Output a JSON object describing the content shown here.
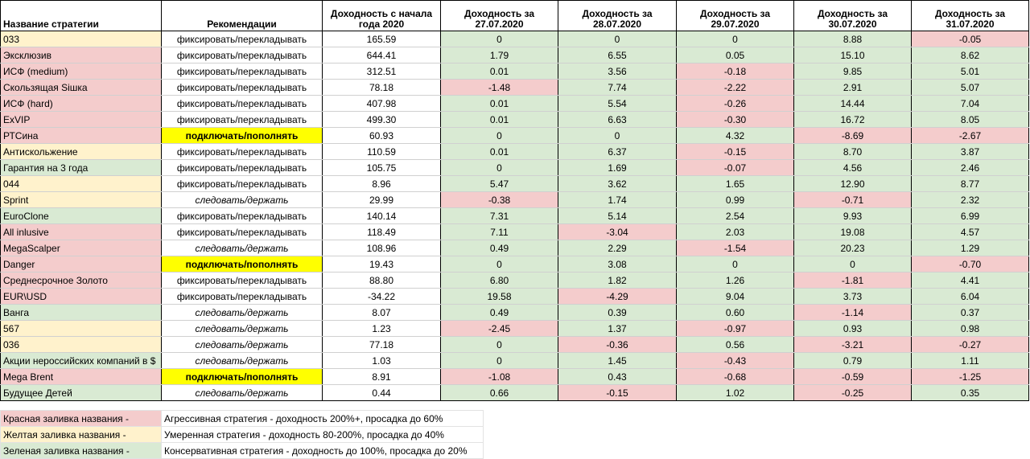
{
  "colors": {
    "red": "#f4cccc",
    "yellow": "#fff2cc",
    "green": "#d9ead3",
    "highlight": "#ffff00"
  },
  "headers": [
    "Название стратегии",
    "Рекомендации",
    "Доходность с начала года 2020",
    "Доходность за 27.07.2020",
    "Доходность за 28.07.2020",
    "Доходность за 29.07.2020",
    "Доходность за 30.07.2020",
    "Доходность за 31.07.2020"
  ],
  "rows": [
    {
      "name": "033",
      "name_color": "yellow",
      "rec": "фиксировать/перекладывать",
      "rec_style": "plain",
      "values": [
        "165.59",
        "0",
        "0",
        "0",
        "8.88",
        "-0.05"
      ]
    },
    {
      "name": "Эксклюзив",
      "name_color": "red",
      "rec": "фиксировать/перекладывать",
      "rec_style": "plain",
      "values": [
        "644.41",
        "1.79",
        "6.55",
        "0.05",
        "15.10",
        "8.62"
      ]
    },
    {
      "name": "ИСФ (medium)",
      "name_color": "red",
      "rec": "фиксировать/перекладывать",
      "rec_style": "plain",
      "values": [
        "312.51",
        "0.01",
        "3.56",
        "-0.18",
        "9.85",
        "5.01"
      ]
    },
    {
      "name": "Скользящая Siшка",
      "name_color": "red",
      "rec": "фиксировать/перекладывать",
      "rec_style": "plain",
      "values": [
        "78.18",
        "-1.48",
        "7.74",
        "-2.22",
        "2.91",
        "5.07"
      ]
    },
    {
      "name": "ИСФ (hard)",
      "name_color": "red",
      "rec": "фиксировать/перекладывать",
      "rec_style": "plain",
      "values": [
        "407.98",
        "0.01",
        "5.54",
        "-0.26",
        "14.44",
        "7.04"
      ]
    },
    {
      "name": "ExVIP",
      "name_color": "red",
      "rec": "фиксировать/перекладывать",
      "rec_style": "plain",
      "values": [
        "499.30",
        "0.01",
        "6.63",
        "-0.30",
        "16.72",
        "8.05"
      ]
    },
    {
      "name": "РТСина",
      "name_color": "red",
      "rec": "подключать/пополнять",
      "rec_style": "bold",
      "values": [
        "60.93",
        "0",
        "0",
        "4.32",
        "-8.69",
        "-2.67"
      ]
    },
    {
      "name": "Антискольжение",
      "name_color": "yellow",
      "rec": "фиксировать/перекладывать",
      "rec_style": "plain",
      "values": [
        "110.59",
        "0.01",
        "6.37",
        "-0.15",
        "8.70",
        "3.87"
      ]
    },
    {
      "name": "Гарантия на 3 года",
      "name_color": "green",
      "rec": "фиксировать/перекладывать",
      "rec_style": "plain",
      "values": [
        "105.75",
        "0",
        "1.69",
        "-0.07",
        "4.56",
        "2.46"
      ]
    },
    {
      "name": "044",
      "name_color": "yellow",
      "rec": "фиксировать/перекладывать",
      "rec_style": "plain",
      "values": [
        "8.96",
        "5.47",
        "3.62",
        "1.65",
        "12.90",
        "8.77"
      ]
    },
    {
      "name": "Sprint",
      "name_color": "yellow",
      "rec": "следовать/держать",
      "rec_style": "italic",
      "values": [
        "29.99",
        "-0.38",
        "1.74",
        "0.99",
        "-0.71",
        "2.32"
      ]
    },
    {
      "name": "EuroClone",
      "name_color": "green",
      "rec": "фиксировать/перекладывать",
      "rec_style": "plain",
      "values": [
        "140.14",
        "7.31",
        "5.14",
        "2.54",
        "9.93",
        "6.99"
      ]
    },
    {
      "name": "All inlusive",
      "name_color": "red",
      "rec": "фиксировать/перекладывать",
      "rec_style": "plain",
      "values": [
        "118.49",
        "7.11",
        "-3.04",
        "2.03",
        "19.08",
        "4.57"
      ]
    },
    {
      "name": "MegaScalper",
      "name_color": "red",
      "rec": "следовать/держать",
      "rec_style": "italic",
      "values": [
        "108.96",
        "0.49",
        "2.29",
        "-1.54",
        "20.23",
        "1.29"
      ]
    },
    {
      "name": "Danger",
      "name_color": "red",
      "rec": "подключать/пополнять",
      "rec_style": "bold",
      "values": [
        "19.43",
        "0",
        "3.08",
        "0",
        "0",
        "-0.70"
      ]
    },
    {
      "name": "Среднесрочное Золото",
      "name_color": "red",
      "rec": "фиксировать/перекладывать",
      "rec_style": "plain",
      "values": [
        "88.80",
        "6.80",
        "1.82",
        "1.26",
        "-1.81",
        "4.41"
      ]
    },
    {
      "name": "EUR\\USD",
      "name_color": "red",
      "rec": "фиксировать/перекладывать",
      "rec_style": "plain",
      "values": [
        "-34.22",
        "19.58",
        "-4.29",
        "9.04",
        "3.73",
        "6.04"
      ]
    },
    {
      "name": "Ванга",
      "name_color": "green",
      "rec": "следовать/держать",
      "rec_style": "italic",
      "values": [
        "8.07",
        "0.49",
        "0.39",
        "0.60",
        "-1.14",
        "0.37"
      ]
    },
    {
      "name": "567",
      "name_color": "yellow",
      "rec": "следовать/держать",
      "rec_style": "italic",
      "values": [
        "1.23",
        "-2.45",
        "1.37",
        "-0.97",
        "0.93",
        "0.98"
      ]
    },
    {
      "name": "036",
      "name_color": "yellow",
      "rec": "следовать/держать",
      "rec_style": "italic",
      "values": [
        "77.18",
        "0",
        "-0.36",
        "0.56",
        "-3.21",
        "-0.27"
      ]
    },
    {
      "name": "Акции нероссийских компаний в $",
      "name_color": "green",
      "rec": "следовать/держать",
      "rec_style": "italic",
      "values": [
        "1.03",
        "0",
        "1.45",
        "-0.43",
        "0.79",
        "1.11"
      ]
    },
    {
      "name": "Mega Brent",
      "name_color": "red",
      "rec": "подключать/пополнять",
      "rec_style": "bold",
      "values": [
        "8.91",
        "-1.08",
        "0.43",
        "-0.68",
        "-0.59",
        "-1.25"
      ]
    },
    {
      "name": "Будущее Детей",
      "name_color": "green",
      "rec": "следовать/держать",
      "rec_style": "italic",
      "values": [
        "0.44",
        "0.66",
        "-0.15",
        "1.02",
        "-0.25",
        "0.35"
      ]
    }
  ],
  "legend": [
    {
      "label": "Красная заливка названия -",
      "color": "red",
      "text": "Агрессивная стратегия - доходность 200%+, просадка до 60%"
    },
    {
      "label": "Желтая заливка названия -",
      "color": "yellow",
      "text": "Умеренная стратегия - доходность 80-200%, просадка до 40%"
    },
    {
      "label": "Зеленая заливка названия -",
      "color": "green",
      "text": "Консервативная стратегия - доходность до 100%, просадка до 20%"
    }
  ]
}
